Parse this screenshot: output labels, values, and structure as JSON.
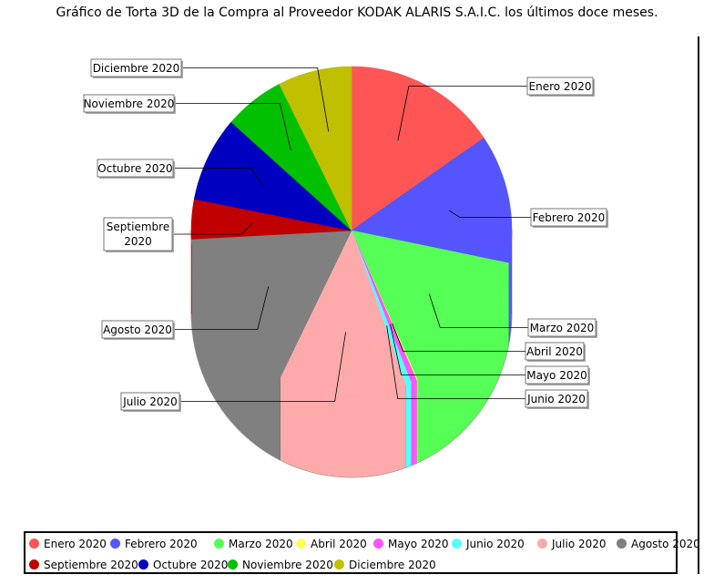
{
  "title": "Gráfico de Torta 3D de la Compra al Proveedor KODAK ALARIS S.A.I.C. los últimos doce meses.",
  "chart_data": {
    "type": "pie",
    "title": "Gráfico de Torta 3D de la Compra al Proveedor KODAK ALARIS S.A.I.C. los últimos doce meses.",
    "categories": [
      "Enero 2020",
      "Febrero 2020",
      "Marzo 2020",
      "Abril 2020",
      "Mayo 2020",
      "Junio 2020",
      "Julio 2020",
      "Agosto 2020",
      "Septiembre 2020",
      "Octubre 2020",
      "Noviembre 2020",
      "Diciembre 2020"
    ],
    "values": [
      15.8,
      13.0,
      15.4,
      0.1,
      0.6,
      0.6,
      13.1,
      17.2,
      4.0,
      8.6,
      6.2,
      7.6
    ],
    "colors": [
      "#ff5555",
      "#5555ff",
      "#55ff55",
      "#ffff55",
      "#ff55ff",
      "#55ffff",
      "#ffaaaa",
      "#808080",
      "#c00000",
      "#0000c0",
      "#00c000",
      "#c0c000"
    ],
    "legend_position": "bottom"
  }
}
